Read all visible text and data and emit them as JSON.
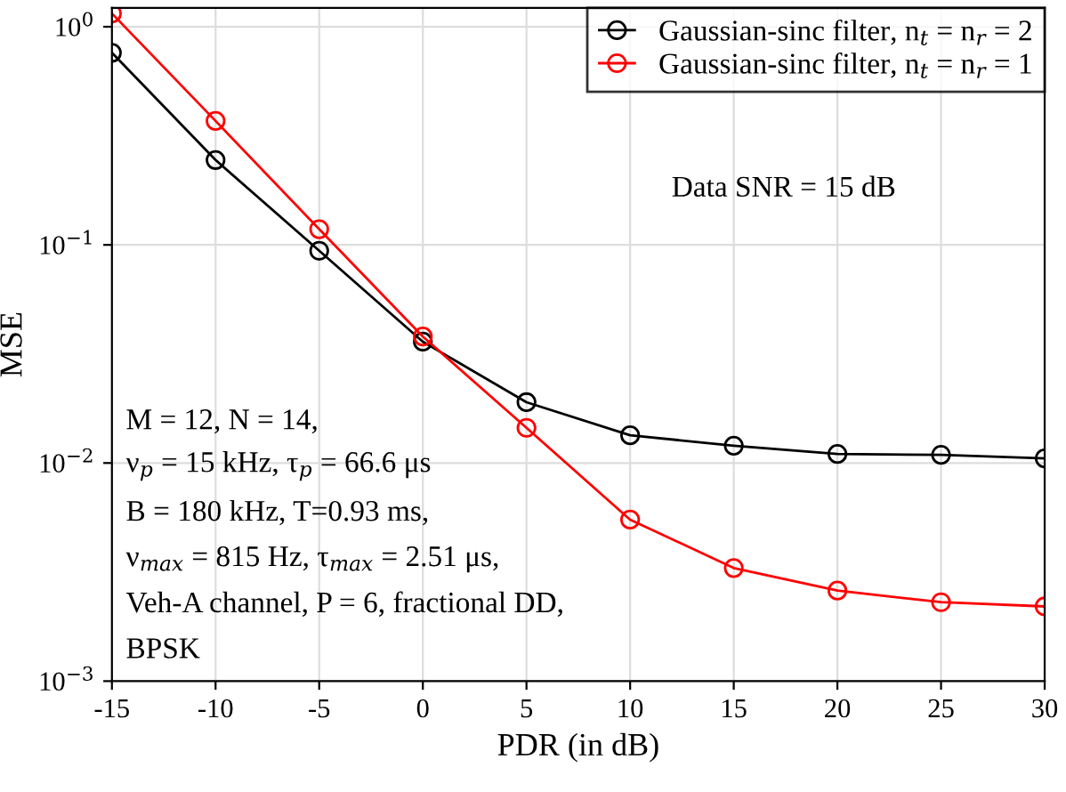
{
  "chart_data": {
    "type": "line",
    "xlabel": "PDR (in dB)",
    "ylabel": "MSE",
    "x": [
      -15,
      -10,
      -5,
      0,
      5,
      10,
      15,
      20,
      25,
      30
    ],
    "series": [
      {
        "name": "Gaussian-sinc filter, n$_{t}$ = n$_{r}$ = 2",
        "color": "#000000",
        "values": [
          0.76,
          0.245,
          0.094,
          0.036,
          0.019,
          0.0134,
          0.012,
          0.011,
          0.0109,
          0.0105
        ]
      },
      {
        "name": "Gaussian-sinc filter, n$_{t}$ = n$_{r}$ = 1",
        "color": "#ff0000",
        "values": [
          1.15,
          0.37,
          0.118,
          0.038,
          0.0145,
          0.0055,
          0.0033,
          0.0026,
          0.0023,
          0.0022
        ]
      }
    ],
    "log": "y",
    "xlim": [
      -15,
      30
    ],
    "ylim": [
      0.001,
      1.22
    ],
    "xticks": [
      -15,
      -10,
      -5,
      0,
      5,
      10,
      15,
      20,
      25,
      30
    ],
    "yticks": [
      {
        "value": 0.001,
        "label": "10$^{−3}$"
      },
      {
        "value": 0.01,
        "label": "10$^{−2}$"
      },
      {
        "value": 0.1,
        "label": "10$^{−1}$"
      },
      {
        "value": 1,
        "label": "10$^{0}$"
      }
    ],
    "grid": true,
    "legend": "top right",
    "marker": "circle",
    "line_style": "solid",
    "annotations": [
      "Data SNR = 15 dB",
      "M = 12, N = 14,",
      "ν$_{p}$ = 15 kHz, τ$_{p}$ = 66.6 μs",
      "B = 180 kHz, T=0.93 ms,",
      "ν$_{max}$ = 815 Hz, τ$_{max}$ = 2.51 μs,",
      "Veh-A channel, P = 6, fractional DD,",
      "BPSK"
    ]
  }
}
